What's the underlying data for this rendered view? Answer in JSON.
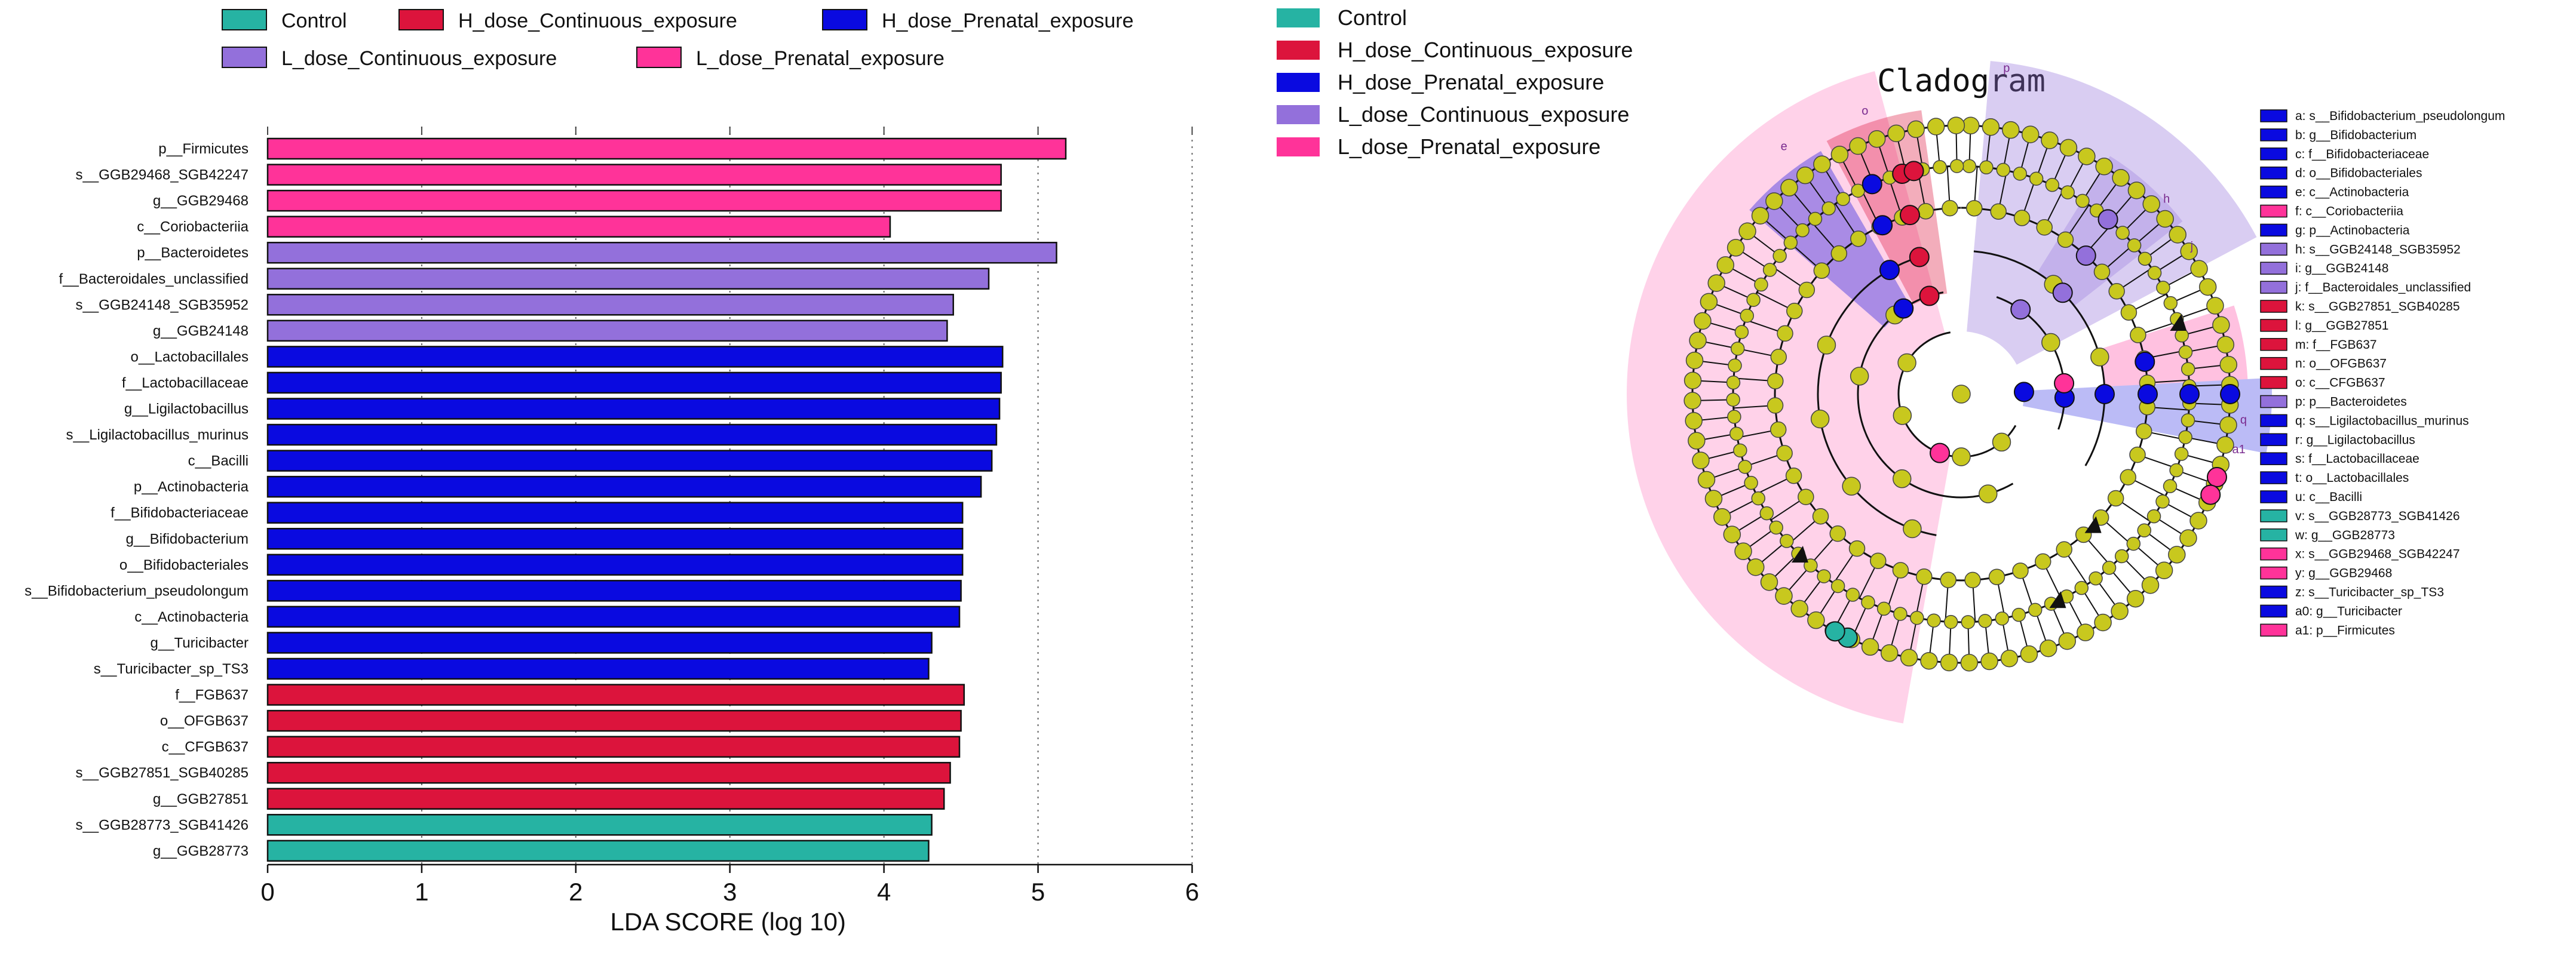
{
  "colors": {
    "Control": "#26b3a3",
    "H_dose_Continuous_exposure": "#dc143c",
    "H_dose_Prenatal_exposure": "#0a0ae0",
    "L_dose_Continuous_exposure": "#9370db",
    "L_dose_Prenatal_exposure": "#ff3399",
    "node_default": "#c8c81e"
  },
  "chart_data": [
    {
      "type": "bar",
      "orientation": "horizontal",
      "title": "",
      "xlabel": "LDA SCORE (log 10)",
      "ylabel": "",
      "xlim": [
        0,
        6
      ],
      "xticks": [
        0,
        1,
        2,
        3,
        4,
        5,
        6
      ],
      "grid": "vertical dotted",
      "legend_placement": "top",
      "legend": [
        "Control",
        "H_dose_Continuous_exposure",
        "H_dose_Prenatal_exposure",
        "L_dose_Continuous_exposure",
        "L_dose_Prenatal_exposure"
      ],
      "bars": [
        {
          "label": "p__Firmicutes",
          "value": 5.18,
          "group": "L_dose_Prenatal_exposure"
        },
        {
          "label": "s__GGB29468_SGB42247",
          "value": 4.76,
          "group": "L_dose_Prenatal_exposure"
        },
        {
          "label": "g__GGB29468",
          "value": 4.76,
          "group": "L_dose_Prenatal_exposure"
        },
        {
          "label": "c__Coriobacteriia",
          "value": 4.04,
          "group": "L_dose_Prenatal_exposure"
        },
        {
          "label": "p__Bacteroidetes",
          "value": 5.12,
          "group": "L_dose_Continuous_exposure"
        },
        {
          "label": "f__Bacteroidales_unclassified",
          "value": 4.68,
          "group": "L_dose_Continuous_exposure"
        },
        {
          "label": "s__GGB24148_SGB35952",
          "value": 4.45,
          "group": "L_dose_Continuous_exposure"
        },
        {
          "label": "g__GGB24148",
          "value": 4.41,
          "group": "L_dose_Continuous_exposure"
        },
        {
          "label": "o__Lactobacillales",
          "value": 4.77,
          "group": "H_dose_Prenatal_exposure"
        },
        {
          "label": "f__Lactobacillaceae",
          "value": 4.76,
          "group": "H_dose_Prenatal_exposure"
        },
        {
          "label": "g__Ligilactobacillus",
          "value": 4.75,
          "group": "H_dose_Prenatal_exposure"
        },
        {
          "label": "s__Ligilactobacillus_murinus",
          "value": 4.73,
          "group": "H_dose_Prenatal_exposure"
        },
        {
          "label": "c__Bacilli",
          "value": 4.7,
          "group": "H_dose_Prenatal_exposure"
        },
        {
          "label": "p__Actinobacteria",
          "value": 4.63,
          "group": "H_dose_Prenatal_exposure"
        },
        {
          "label": "f__Bifidobacteriaceae",
          "value": 4.51,
          "group": "H_dose_Prenatal_exposure"
        },
        {
          "label": "g__Bifidobacterium",
          "value": 4.51,
          "group": "H_dose_Prenatal_exposure"
        },
        {
          "label": "o__Bifidobacteriales",
          "value": 4.51,
          "group": "H_dose_Prenatal_exposure"
        },
        {
          "label": "s__Bifidobacterium_pseudolongum",
          "value": 4.5,
          "group": "H_dose_Prenatal_exposure"
        },
        {
          "label": "c__Actinobacteria",
          "value": 4.49,
          "group": "H_dose_Prenatal_exposure"
        },
        {
          "label": "g__Turicibacter",
          "value": 4.31,
          "group": "H_dose_Prenatal_exposure"
        },
        {
          "label": "s__Turicibacter_sp_TS3",
          "value": 4.29,
          "group": "H_dose_Prenatal_exposure"
        },
        {
          "label": "f__FGB637",
          "value": 4.52,
          "group": "H_dose_Continuous_exposure"
        },
        {
          "label": "o__OFGB637",
          "value": 4.5,
          "group": "H_dose_Continuous_exposure"
        },
        {
          "label": "c__CFGB637",
          "value": 4.49,
          "group": "H_dose_Continuous_exposure"
        },
        {
          "label": "s__GGB27851_SGB40285",
          "value": 4.43,
          "group": "H_dose_Continuous_exposure"
        },
        {
          "label": "g__GGB27851",
          "value": 4.39,
          "group": "H_dose_Continuous_exposure"
        },
        {
          "label": "s__GGB28773_SGB41426",
          "value": 4.31,
          "group": "Control"
        },
        {
          "label": "g__GGB28773",
          "value": 4.29,
          "group": "Control"
        }
      ]
    },
    {
      "type": "cladogram",
      "title": "Cladogram",
      "legend": [
        "Control",
        "H_dose_Continuous_exposure",
        "H_dose_Prenatal_exposure",
        "L_dose_Continuous_exposure",
        "L_dose_Prenatal_exposure"
      ],
      "sector_labels": [
        "p",
        "o",
        "e",
        "h",
        "j",
        "a1",
        "q"
      ],
      "key": [
        {
          "text": "a: s__Bifidobacterium_pseudolongum",
          "group": "H_dose_Prenatal_exposure"
        },
        {
          "text": "b: g__Bifidobacterium",
          "group": "H_dose_Prenatal_exposure"
        },
        {
          "text": "c: f__Bifidobacteriaceae",
          "group": "H_dose_Prenatal_exposure"
        },
        {
          "text": "d: o__Bifidobacteriales",
          "group": "H_dose_Prenatal_exposure"
        },
        {
          "text": "e: c__Actinobacteria",
          "group": "H_dose_Prenatal_exposure"
        },
        {
          "text": "f: c__Coriobacteriia",
          "group": "L_dose_Prenatal_exposure"
        },
        {
          "text": "g: p__Actinobacteria",
          "group": "H_dose_Prenatal_exposure"
        },
        {
          "text": "h: s__GGB24148_SGB35952",
          "group": "L_dose_Continuous_exposure"
        },
        {
          "text": "i: g__GGB24148",
          "group": "L_dose_Continuous_exposure"
        },
        {
          "text": "j: f__Bacteroidales_unclassified",
          "group": "L_dose_Continuous_exposure"
        },
        {
          "text": "k: s__GGB27851_SGB40285",
          "group": "H_dose_Continuous_exposure"
        },
        {
          "text": "l: g__GGB27851",
          "group": "H_dose_Continuous_exposure"
        },
        {
          "text": "m: f__FGB637",
          "group": "H_dose_Continuous_exposure"
        },
        {
          "text": "n: o__OFGB637",
          "group": "H_dose_Continuous_exposure"
        },
        {
          "text": "o: c__CFGB637",
          "group": "H_dose_Continuous_exposure"
        },
        {
          "text": "p: p__Bacteroidetes",
          "group": "L_dose_Continuous_exposure"
        },
        {
          "text": "q: s__Ligilactobacillus_murinus",
          "group": "H_dose_Prenatal_exposure"
        },
        {
          "text": "r: g__Ligilactobacillus",
          "group": "H_dose_Prenatal_exposure"
        },
        {
          "text": "s: f__Lactobacillaceae",
          "group": "H_dose_Prenatal_exposure"
        },
        {
          "text": "t: o__Lactobacillales",
          "group": "H_dose_Prenatal_exposure"
        },
        {
          "text": "u: c__Bacilli",
          "group": "H_dose_Prenatal_exposure"
        },
        {
          "text": "v: s__GGB28773_SGB41426",
          "group": "Control"
        },
        {
          "text": "w: g__GGB28773",
          "group": "Control"
        },
        {
          "text": "x: s__GGB29468_SGB42247",
          "group": "L_dose_Prenatal_exposure"
        },
        {
          "text": "y: g__GGB29468",
          "group": "L_dose_Prenatal_exposure"
        },
        {
          "text": "z: s__Turicibacter_sp_TS3",
          "group": "H_dose_Prenatal_exposure"
        },
        {
          "text": "a0: g__Turicibacter",
          "group": "H_dose_Prenatal_exposure"
        },
        {
          "text": "a1: p__Firmicutes",
          "group": "L_dose_Prenatal_exposure"
        }
      ]
    }
  ]
}
